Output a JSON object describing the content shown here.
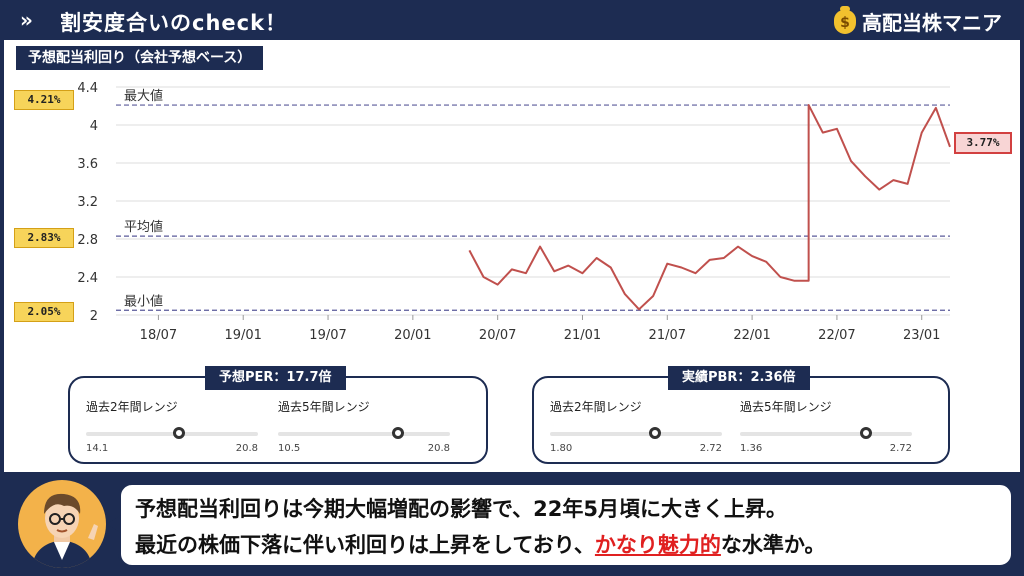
{
  "header": {
    "title": "割安度合いのcheck！",
    "brand": "高配当株マニア",
    "chevron_icon": "double-chevron-right-icon",
    "brand_icon": "money-bag-icon"
  },
  "chart_data": {
    "type": "line",
    "title": "予想配当利回り（会社予想ベース）",
    "xlabel": "",
    "ylabel": "",
    "x_ticks": [
      "18/07",
      "19/01",
      "19/07",
      "20/01",
      "20/07",
      "21/01",
      "21/07",
      "22/01",
      "22/07",
      "23/01"
    ],
    "y_ticks": [
      "2",
      "2.4",
      "2.8",
      "3.2",
      "3.6",
      "4",
      "4.4"
    ],
    "ylim": [
      2.0,
      4.4
    ],
    "xlim": [
      "2018-04",
      "2023-03"
    ],
    "grid": true,
    "series": [
      {
        "color": "#c0504d",
        "points": [
          [
            "2020-05",
            2.68
          ],
          [
            "2020-06",
            2.4
          ],
          [
            "2020-07",
            2.32
          ],
          [
            "2020-08",
            2.48
          ],
          [
            "2020-09",
            2.44
          ],
          [
            "2020-10",
            2.72
          ],
          [
            "2020-11",
            2.46
          ],
          [
            "2020-12",
            2.52
          ],
          [
            "2021-01",
            2.44
          ],
          [
            "2021-02",
            2.6
          ],
          [
            "2021-03",
            2.5
          ],
          [
            "2021-04",
            2.22
          ],
          [
            "2021-05",
            2.06
          ],
          [
            "2021-06",
            2.2
          ],
          [
            "2021-07",
            2.54
          ],
          [
            "2021-08",
            2.5
          ],
          [
            "2021-09",
            2.44
          ],
          [
            "2021-10",
            2.58
          ],
          [
            "2021-11",
            2.6
          ],
          [
            "2021-12",
            2.72
          ],
          [
            "2022-01",
            2.62
          ],
          [
            "2022-02",
            2.56
          ],
          [
            "2022-03",
            2.4
          ],
          [
            "2022-04",
            2.36
          ],
          [
            "2022-05",
            2.36
          ],
          [
            "2022-05",
            4.21
          ],
          [
            "2022-06",
            3.92
          ],
          [
            "2022-07",
            3.96
          ],
          [
            "2022-08",
            3.62
          ],
          [
            "2022-09",
            3.46
          ],
          [
            "2022-10",
            3.32
          ],
          [
            "2022-11",
            3.42
          ],
          [
            "2022-12",
            3.38
          ],
          [
            "2023-01",
            3.92
          ],
          [
            "2023-02",
            4.18
          ],
          [
            "2023-03",
            3.77
          ]
        ]
      }
    ],
    "reference_lines": [
      {
        "label": "最大値",
        "value": 4.21,
        "tag": "4.21%"
      },
      {
        "label": "平均値",
        "value": 2.83,
        "tag": "2.83%"
      },
      {
        "label": "最小値",
        "value": 2.05,
        "tag": "2.05%"
      }
    ],
    "current_value": {
      "value": 3.77,
      "tag": "3.77%",
      "color": "#d24040"
    }
  },
  "per": {
    "header": "予想PER：17.7倍",
    "ranges": [
      {
        "label": "過去2年間レンジ",
        "low": "14.1",
        "high": "20.8",
        "position": 0.54
      },
      {
        "label": "過去5年間レンジ",
        "low": "10.5",
        "high": "20.8",
        "position": 0.7
      }
    ]
  },
  "pbr": {
    "header": "実績PBR：2.36倍",
    "ranges": [
      {
        "label": "過去2年間レンジ",
        "low": "1.80",
        "high": "2.72",
        "position": 0.61
      },
      {
        "label": "過去5年間レンジ",
        "low": "1.36",
        "high": "2.72",
        "position": 0.73
      }
    ]
  },
  "comment": {
    "line1": "予想配当利回りは今期大幅増配の影響で、22年5月頃に大きく上昇。",
    "line2_pre": "最近の株価下落に伴い利回りは上昇をしており、",
    "line2_highlight": "かなり魅力的",
    "line2_post": "な水準か。",
    "highlight_color": "#e02020",
    "avatar_icon": "presenter-avatar-icon"
  }
}
